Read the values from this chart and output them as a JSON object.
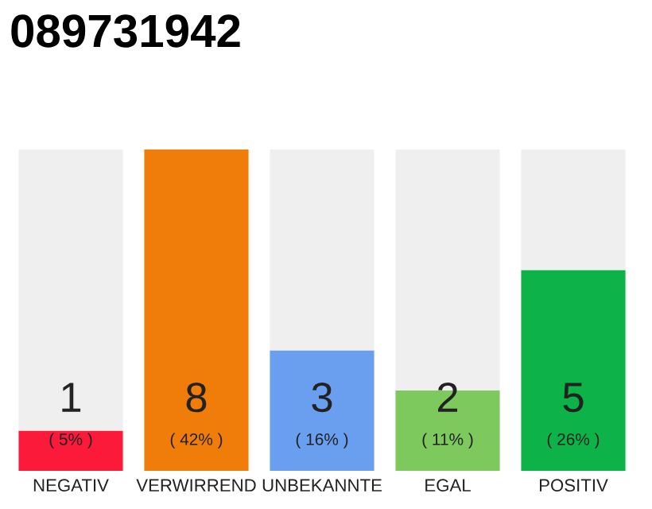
{
  "chart_data": {
    "type": "bar",
    "title": "089731942",
    "categories": [
      "NEGATIV",
      "VERWIRREND",
      "UNBEKANNTE",
      "EGAL",
      "POSITIV"
    ],
    "ylim": [
      0,
      8
    ],
    "tick_labels": "x",
    "grid": false,
    "legend": false,
    "stacked": true,
    "series": [
      {
        "colors": [
          "#fb1a3a",
          "#f07d0a",
          "#6a9ff0",
          "#7dc95e",
          "#0db348"
        ],
        "values": [
          1,
          8,
          3,
          2,
          5
        ],
        "value_labels": [
          "1\n( 5% )",
          "8\n( 42% )",
          "3\n( 16% )",
          "2\n( 11% )",
          "5\n( 26% )"
        ]
      },
      {
        "color": "#efefef",
        "values": [
          7,
          0,
          5,
          6,
          3
        ]
      }
    ]
  }
}
